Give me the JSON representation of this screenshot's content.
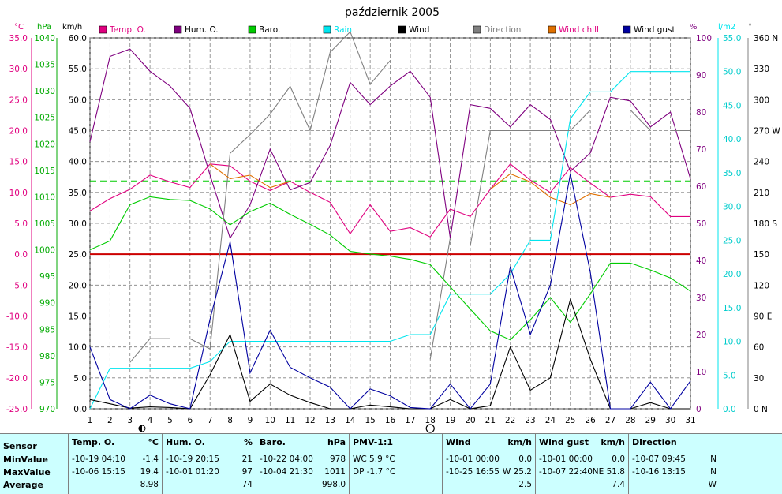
{
  "title": "październik 2005",
  "legend": [
    {
      "name": "Temp. O.",
      "color": "#e0007f",
      "text_color": "#e0007f"
    },
    {
      "name": "Hum. O.",
      "color": "#7f007f",
      "text_color": "#000000"
    },
    {
      "name": "Baro.",
      "color": "#00cc00",
      "text_color": "#000000"
    },
    {
      "name": "Rain",
      "color": "#00e5ee",
      "text_color": "#00e5ee"
    },
    {
      "name": "Wind",
      "color": "#000000",
      "text_color": "#000000"
    },
    {
      "name": "Direction",
      "color": "#808080",
      "text_color": "#808080"
    },
    {
      "name": "Wind chill",
      "color": "#e07000",
      "text_color": "#e0007f"
    },
    {
      "name": "Wind gust",
      "color": "#0000a0",
      "text_color": "#000000"
    }
  ],
  "axis_units": {
    "temp": "°C",
    "baro": "hPa",
    "wind": "km/h",
    "hum": "%",
    "rain": "l/m2",
    "dir": "°"
  },
  "chart_data": {
    "type": "line",
    "x": [
      1,
      2,
      3,
      4,
      5,
      6,
      7,
      8,
      9,
      10,
      11,
      12,
      13,
      14,
      15,
      16,
      17,
      18,
      19,
      20,
      21,
      22,
      23,
      24,
      25,
      26,
      27,
      28,
      29,
      30,
      31
    ],
    "xlim": [
      1,
      31
    ],
    "axes": {
      "temp": {
        "min": -25,
        "max": 35,
        "step": 5,
        "ticks": [
          "35.0",
          "30.0",
          "25.0",
          "20.0",
          "15.0",
          "10.0",
          "5.0",
          "0.0",
          "-5.0",
          "-10.0",
          "-15.0",
          "-20.0",
          "-25.0"
        ]
      },
      "baro": {
        "min": 970,
        "max": 1040,
        "step": 5,
        "ticks": [
          "1040",
          "1035",
          "1030",
          "1025",
          "1020",
          "1015",
          "1010",
          "1005",
          "1000",
          "995",
          "990",
          "985",
          "980",
          "975",
          "970"
        ]
      },
      "wind": {
        "min": 0,
        "max": 60,
        "step": 5,
        "ticks": [
          "60.0",
          "55.0",
          "50.0",
          "45.0",
          "40.0",
          "35.0",
          "30.0",
          "25.0",
          "20.0",
          "15.0",
          "10.0",
          "5.0",
          "0.0"
        ]
      },
      "hum": {
        "min": 0,
        "max": 100,
        "step": 10,
        "ticks": [
          "100",
          "90",
          "80",
          "70",
          "60",
          "50",
          "40",
          "30",
          "20",
          "10",
          "0"
        ]
      },
      "rain": {
        "min": 0,
        "max": 55,
        "step": 5,
        "ticks": [
          "55.0",
          "50.0",
          "45.0",
          "40.0",
          "35.0",
          "30.0",
          "25.0",
          "20.0",
          "15.0",
          "10.0",
          "5.0",
          "0.0"
        ]
      },
      "dir": {
        "min": 0,
        "max": 360,
        "step": 30,
        "ticks": [
          "360 N",
          "330",
          "300",
          "270 W",
          "240",
          "210",
          "180 S",
          "150",
          "120",
          "90 E",
          "60",
          "30",
          "0 N"
        ]
      }
    },
    "series": [
      {
        "name": "Temp. O.",
        "axis": "temp",
        "color": "#e0007f",
        "values": [
          7,
          9,
          10.5,
          12.8,
          11.7,
          10.8,
          14.6,
          14.3,
          11.8,
          10.3,
          11.8,
          10,
          8.4,
          3.3,
          8,
          3.7,
          4.3,
          2.8,
          7.3,
          6.1,
          10.5,
          14.6,
          12,
          10,
          14,
          11.5,
          9.2,
          9.7,
          9.3,
          6.1,
          6.1
        ]
      },
      {
        "name": "Hum. O.",
        "axis": "hum",
        "color": "#7f007f",
        "values": [
          72,
          95,
          97,
          91,
          87,
          81,
          63,
          46,
          55,
          70,
          59,
          61,
          71,
          88,
          82,
          87,
          91,
          84,
          46,
          82,
          81,
          76,
          82,
          78,
          64,
          69,
          84,
          83,
          76,
          80,
          62
        ]
      },
      {
        "name": "Baro.",
        "axis": "baro",
        "color": "#00cc00",
        "values": [
          1000,
          1001.7,
          1008.5,
          1010,
          1009.5,
          1009.3,
          1007.7,
          1004.7,
          1007.2,
          1008.8,
          1006.7,
          1004.8,
          1002.8,
          999.7,
          999.2,
          998.8,
          998.2,
          997.2,
          993,
          988.8,
          984.7,
          983,
          986.8,
          991,
          986.3,
          991.7,
          997.5,
          997.5,
          996.2,
          994.7,
          992.2
        ]
      },
      {
        "name": "Rain",
        "axis": "rain",
        "color": "#00e5ee",
        "values": [
          0,
          6,
          6,
          6,
          6,
          6,
          7,
          10,
          10,
          10,
          10,
          10,
          10,
          10,
          10,
          10,
          11,
          11,
          17,
          17,
          17,
          20,
          25,
          25,
          43,
          47,
          47,
          50,
          50,
          50,
          50
        ]
      },
      {
        "name": "Wind",
        "axis": "wind",
        "color": "#000000",
        "values": [
          1.5,
          0.8,
          0.1,
          0.3,
          0.2,
          0,
          5.5,
          12,
          1.2,
          4,
          2.2,
          1,
          0,
          0,
          0.6,
          0.3,
          0,
          0,
          1.5,
          0,
          0.5,
          10,
          3,
          5,
          17.7,
          8,
          0,
          0,
          1,
          0,
          0
        ]
      },
      {
        "name": "Direction",
        "axis": "dir",
        "color": "#808080",
        "segments": [
          [
            [
              3,
              45
            ],
            [
              4,
              68
            ],
            [
              5,
              68
            ]
          ],
          [
            [
              6,
              68
            ],
            [
              7,
              58
            ],
            [
              8,
              248
            ],
            [
              9,
              266
            ],
            [
              10,
              286
            ],
            [
              11,
              313
            ],
            [
              12,
              270
            ],
            [
              13,
              346
            ],
            [
              14,
              366
            ],
            [
              15,
              315
            ],
            [
              16,
              338
            ]
          ],
          [
            [
              18,
              48
            ],
            [
              19,
              166
            ]
          ],
          [
            [
              20,
              158
            ],
            [
              21,
              270
            ],
            [
              22,
              270
            ],
            [
              23,
              270
            ],
            [
              24,
              270
            ],
            [
              25,
              270
            ],
            [
              26,
              290
            ]
          ],
          [
            [
              28,
              290
            ],
            [
              29,
              270
            ]
          ],
          [
            [
              30,
              270
            ],
            [
              31,
              270
            ]
          ]
        ]
      },
      {
        "name": "Wind chill",
        "axis": "temp",
        "color": "#e07000",
        "values": [
          null,
          null,
          null,
          null,
          null,
          null,
          14.6,
          12.2,
          12.8,
          10.8,
          11.8,
          null,
          null,
          null,
          null,
          null,
          null,
          null,
          null,
          null,
          10.5,
          13,
          11.7,
          9.2,
          8,
          9.8,
          9.2,
          null,
          null,
          null,
          null
        ]
      },
      {
        "name": "Wind gust",
        "axis": "wind",
        "color": "#0000a0",
        "values": [
          10,
          1.5,
          0,
          2.2,
          0.8,
          0,
          14.5,
          27,
          5.8,
          12.7,
          6.7,
          5,
          3.5,
          0,
          3.2,
          2.1,
          0.2,
          0,
          4,
          0,
          4,
          23,
          12,
          20,
          38,
          22,
          0,
          0,
          4.3,
          0,
          4.5
        ]
      }
    ],
    "reference_lines": [
      {
        "axis": "temp",
        "value": 0,
        "color": "#cc0000"
      },
      {
        "axis": "baro",
        "value": 1013,
        "color": "#00cc00",
        "dashed": true
      }
    ],
    "moon_markers": [
      {
        "day": 3.6,
        "phase": "first-quarter"
      },
      {
        "day": 18,
        "phase": "full"
      }
    ],
    "grid": true
  },
  "table": {
    "row_labels": [
      "Sensor",
      "MinValue",
      "MaxValue",
      "Average"
    ],
    "columns": [
      {
        "header": "Temp. O.",
        "unit": "°C",
        "min_time": "-10-19  04:10",
        "min_val": "-1.4",
        "max_time": "-10-06  15:15",
        "max_val": "19.4",
        "avg": "8.98"
      },
      {
        "header": "Hum. O.",
        "unit": "%",
        "min_time": "-10-19  20:15",
        "min_val": "21",
        "max_time": "-10-01  01:20",
        "max_val": "97",
        "avg": "74"
      },
      {
        "header": "Baro.",
        "unit": "hPa",
        "min_time": "-10-22  04:00",
        "min_val": "978",
        "max_time": "-10-04  21:30",
        "max_val": "1011",
        "avg": "998.0"
      },
      {
        "header": "PMV-1:1",
        "unit": "",
        "min_time": "WC 5.9 °C",
        "min_val": "",
        "max_time": "DP -1.7 °C",
        "max_val": "",
        "avg": ""
      },
      {
        "header": "Wind",
        "unit": "km/h",
        "min_time": "-10-01  00:00",
        "min_val": "0.0",
        "max_time": "-10-25  16:55",
        "max_val": "W 25.2",
        "avg": "2.5"
      },
      {
        "header": "Wind gust",
        "unit": "km/h",
        "min_time": "-10-01  00:00",
        "min_val": "0.0",
        "max_time": "-10-07  22:40",
        "max_val": "NE 51.8",
        "avg": "7.4"
      },
      {
        "header": "Direction",
        "unit": "",
        "min_time": "-10-07  09:45",
        "min_val": "N",
        "max_time": "-10-16  13:15",
        "max_val": "N",
        "avg": "W"
      }
    ]
  }
}
